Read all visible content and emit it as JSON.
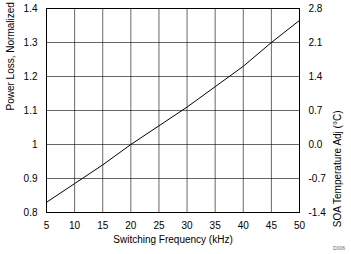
{
  "chart_data": {
    "type": "line",
    "x_label": "Switching Frequency (kHz)",
    "y_label": "Power Loss, Normalized",
    "y2_label": "SOA Temperature Adj (°C)",
    "annotations": [
      "D006"
    ],
    "x": [
      5,
      10,
      15,
      20,
      25,
      30,
      35,
      40,
      45,
      50
    ],
    "series": [
      {
        "name": "Power Loss",
        "color": "#000000",
        "values": [
          0.83,
          0.885,
          0.94,
          1.0,
          1.055,
          1.11,
          1.17,
          1.23,
          1.3,
          1.365
        ]
      }
    ],
    "xlim": [
      5,
      50
    ],
    "xticks": [
      5,
      10,
      15,
      20,
      25,
      30,
      35,
      40,
      45,
      50
    ],
    "ylim": [
      0.8,
      1.4
    ],
    "yticks": [
      0.8,
      0.9,
      1,
      1.1,
      1.2,
      1.3,
      1.4
    ],
    "y2lim": [
      -1.4,
      2.8
    ],
    "y2ticks": [
      -1.4,
      -0.7,
      {
        "value": 0,
        "label": "0.0"
      },
      0.7,
      1.4,
      2.1,
      2.8
    ],
    "grid": true
  }
}
